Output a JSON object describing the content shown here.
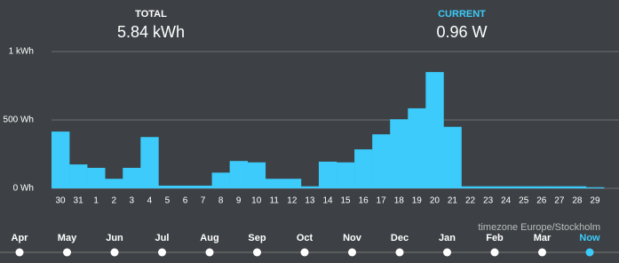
{
  "header": {
    "total_label": "TOTAL",
    "total_value": "5.84 kWh",
    "current_label": "CURRENT",
    "current_value": "0.96 W"
  },
  "chart_data": {
    "type": "bar",
    "color": "#3ccbfa",
    "grid": true,
    "categories": [
      "30",
      "31",
      "1",
      "2",
      "3",
      "4",
      "5",
      "6",
      "7",
      "8",
      "9",
      "10",
      "11",
      "12",
      "13",
      "14",
      "15",
      "16",
      "17",
      "18",
      "19",
      "20",
      "21",
      "22",
      "23",
      "24",
      "25",
      "26",
      "27",
      "28",
      "29"
    ],
    "values": [
      415,
      175,
      150,
      70,
      150,
      375,
      20,
      20,
      20,
      115,
      200,
      190,
      70,
      70,
      15,
      195,
      190,
      285,
      395,
      505,
      585,
      850,
      450,
      15,
      15,
      15,
      15,
      15,
      15,
      15,
      8
    ],
    "ylim": [
      0,
      1000
    ],
    "yticks": [
      {
        "value": 0,
        "label": "0 Wh"
      },
      {
        "value": 500,
        "label": "500 Wh"
      },
      {
        "value": 1000,
        "label": "1 kWh"
      }
    ]
  },
  "timezone": "timezone Europe/Stockholm",
  "timeline": [
    "Apr",
    "May",
    "Jun",
    "Jul",
    "Aug",
    "Sep",
    "Oct",
    "Nov",
    "Dec",
    "Jan",
    "Feb",
    "Mar",
    "Now"
  ]
}
